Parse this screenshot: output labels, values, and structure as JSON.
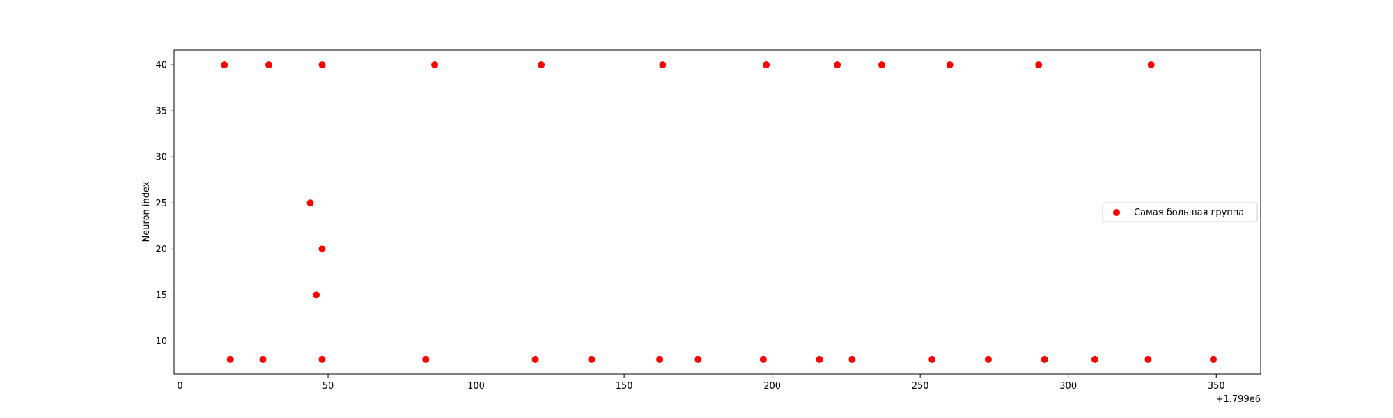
{
  "chart_data": {
    "type": "scatter",
    "title": "",
    "xlabel": "",
    "ylabel": "Neuron index",
    "x_offset_label": "+1.799e6",
    "xlim": [
      -2,
      365
    ],
    "ylim": [
      6.4,
      41.6
    ],
    "xticks": [
      0,
      50,
      100,
      150,
      200,
      250,
      300,
      350
    ],
    "yticks": [
      10,
      15,
      20,
      25,
      30,
      35,
      40
    ],
    "grid": false,
    "legend_position": "right",
    "series": [
      {
        "name": "Самая большая группа",
        "color": "#ff0000",
        "points": [
          {
            "x": 1799015,
            "y": 40
          },
          {
            "x": 1799030,
            "y": 40
          },
          {
            "x": 1799048,
            "y": 40
          },
          {
            "x": 1799086,
            "y": 40
          },
          {
            "x": 1799122,
            "y": 40
          },
          {
            "x": 1799163,
            "y": 40
          },
          {
            "x": 1799198,
            "y": 40
          },
          {
            "x": 1799222,
            "y": 40
          },
          {
            "x": 1799237,
            "y": 40
          },
          {
            "x": 1799260,
            "y": 40
          },
          {
            "x": 1799290,
            "y": 40
          },
          {
            "x": 1799328,
            "y": 40
          },
          {
            "x": 1799044,
            "y": 25
          },
          {
            "x": 1799048,
            "y": 20
          },
          {
            "x": 1799046,
            "y": 15
          },
          {
            "x": 1799017,
            "y": 8
          },
          {
            "x": 1799028,
            "y": 8
          },
          {
            "x": 1799048,
            "y": 8
          },
          {
            "x": 1799083,
            "y": 8
          },
          {
            "x": 1799120,
            "y": 8
          },
          {
            "x": 1799139,
            "y": 8
          },
          {
            "x": 1799162,
            "y": 8
          },
          {
            "x": 1799175,
            "y": 8
          },
          {
            "x": 1799197,
            "y": 8
          },
          {
            "x": 1799216,
            "y": 8
          },
          {
            "x": 1799227,
            "y": 8
          },
          {
            "x": 1799254,
            "y": 8
          },
          {
            "x": 1799273,
            "y": 8
          },
          {
            "x": 1799292,
            "y": 8
          },
          {
            "x": 1799309,
            "y": 8
          },
          {
            "x": 1799327,
            "y": 8
          },
          {
            "x": 1799349,
            "y": 8
          }
        ]
      }
    ]
  }
}
